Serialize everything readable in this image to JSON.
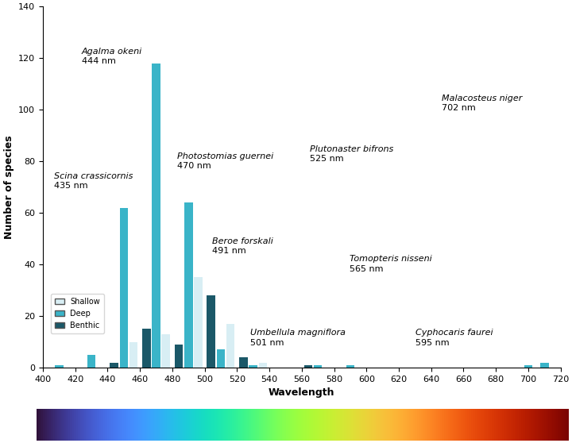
{
  "chart_data": {
    "type": "bar",
    "x_label": "Wavelength",
    "y_label": "Number of species",
    "x": [
      410,
      430,
      450,
      470,
      490,
      510,
      530,
      570,
      590,
      700,
      710
    ],
    "series": [
      {
        "name": "Shallow",
        "color": "#d8eef4",
        "values": [
          0,
          0,
          10,
          13,
          35,
          17,
          2,
          0,
          0,
          0,
          0
        ]
      },
      {
        "name": "Deep",
        "color": "#3ab4c8",
        "values": [
          1,
          5,
          62,
          118,
          64,
          7,
          1,
          1,
          1,
          1,
          2
        ]
      },
      {
        "name": "Benthic",
        "color": "#1b5868",
        "values": [
          0,
          0,
          2,
          15,
          9,
          28,
          4,
          1,
          0,
          0,
          0
        ]
      }
    ],
    "xlim": [
      400,
      720
    ],
    "xticks": [
      400,
      420,
      440,
      460,
      480,
      500,
      520,
      540,
      560,
      580,
      600,
      620,
      640,
      660,
      680,
      700,
      720
    ],
    "ylim": [
      0,
      140
    ],
    "yticks": [
      0,
      20,
      40,
      60,
      80,
      100,
      120,
      140
    ],
    "grid": false,
    "legend": "lower left",
    "annotations": [
      {
        "name": "Agalma okeni",
        "label": "444 nm"
      },
      {
        "name": "Scina crassicornis",
        "label": "435 nm"
      },
      {
        "name": "Photostomias guernei",
        "label": "470 nm"
      },
      {
        "name": "Plutonaster bifrons",
        "label": "525 nm"
      },
      {
        "name": "Malacosteus niger",
        "label": "702 nm"
      },
      {
        "name": "Beroe forskali",
        "label": "491 nm"
      },
      {
        "name": "Tomopteris nisseni",
        "label": "565 nm"
      },
      {
        "name": "Umbellula magniflora",
        "label": "501 nm"
      },
      {
        "name": "Cyphocaris faurei",
        "label": "595 nm"
      }
    ]
  }
}
